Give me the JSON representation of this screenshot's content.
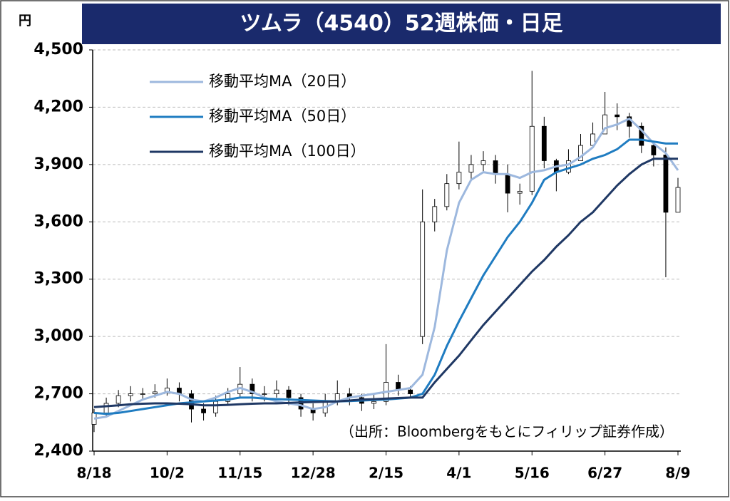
{
  "chart_data": {
    "type": "candlestick",
    "title": "ツムラ（4540）52週株価・日足",
    "y_unit": "円",
    "source_note": "（出所：Bloombergをもとにフィリップ証券作成）",
    "categories": [
      "8/18",
      null,
      null,
      null,
      null,
      null,
      "10/2",
      null,
      null,
      null,
      null,
      null,
      "11/15",
      null,
      null,
      null,
      null,
      null,
      "12/28",
      null,
      null,
      null,
      null,
      null,
      "2/15",
      null,
      null,
      null,
      null,
      null,
      "4/1",
      null,
      null,
      null,
      null,
      null,
      "5/16",
      null,
      null,
      null,
      null,
      null,
      "6/27",
      null,
      null,
      null,
      null,
      null,
      "8/9"
    ],
    "ylim": [
      2400,
      4500
    ],
    "yticks": [
      {
        "value": 2400,
        "label": "2,400"
      },
      {
        "value": 2700,
        "label": "2,700"
      },
      {
        "value": 3000,
        "label": "3,000"
      },
      {
        "value": 3300,
        "label": "3,300"
      },
      {
        "value": 3600,
        "label": "3,600"
      },
      {
        "value": 3900,
        "label": "3,900"
      },
      {
        "value": 4200,
        "label": "4,200"
      },
      {
        "value": 4500,
        "label": "4,500"
      }
    ],
    "grid": true,
    "candle_color": "#000000",
    "open": [
      2540,
      2600,
      2650,
      2690,
      2700,
      2700,
      2710,
      2730,
      2700,
      2620,
      2600,
      2660,
      2700,
      2750,
      2700,
      2700,
      2720,
      2680,
      2620,
      2600,
      2660,
      2700,
      2680,
      2650,
      2660,
      2760,
      2720,
      3000,
      3600,
      3680,
      3800,
      3860,
      3900,
      3920,
      3850,
      3750,
      3760,
      4100,
      3920,
      3860,
      3920,
      4000,
      4060,
      4160,
      4150,
      4100,
      4000,
      3950,
      3650
    ],
    "high": [
      2620,
      2680,
      2720,
      2740,
      2730,
      2750,
      2780,
      2760,
      2720,
      2650,
      2690,
      2730,
      2840,
      2780,
      2740,
      2770,
      2740,
      2700,
      2650,
      2700,
      2770,
      2730,
      2700,
      2700,
      2960,
      2800,
      2740,
      3770,
      3720,
      3850,
      4020,
      3950,
      3970,
      3950,
      3900,
      3800,
      4390,
      4150,
      3930,
      3980,
      4060,
      4120,
      4280,
      4220,
      4170,
      4120,
      4020,
      3990,
      3830
    ],
    "low": [
      2500,
      2580,
      2630,
      2660,
      2670,
      2680,
      2690,
      2660,
      2550,
      2560,
      2580,
      2640,
      2680,
      2660,
      2660,
      2680,
      2640,
      2580,
      2560,
      2580,
      2640,
      2640,
      2610,
      2620,
      2640,
      2690,
      2680,
      2960,
      3550,
      3660,
      3770,
      3820,
      3860,
      3800,
      3650,
      3690,
      3740,
      3880,
      3760,
      3850,
      3940,
      4000,
      4060,
      4080,
      4040,
      3960,
      3890,
      3310,
      3650
    ],
    "close": [
      2600,
      2650,
      2690,
      2700,
      2700,
      2710,
      2730,
      2700,
      2620,
      2600,
      2660,
      2700,
      2750,
      2700,
      2700,
      2720,
      2680,
      2620,
      2600,
      2660,
      2700,
      2680,
      2650,
      2660,
      2760,
      2720,
      2700,
      3600,
      3680,
      3800,
      3860,
      3900,
      3920,
      3850,
      3750,
      3760,
      4100,
      3920,
      3860,
      3920,
      4000,
      4060,
      4160,
      4150,
      4100,
      4000,
      3950,
      3650,
      3780
    ],
    "series": [
      {
        "name": "移動平均MA（20日）",
        "color": "#9db8de",
        "values": [
          2570,
          2580,
          2610,
          2640,
          2670,
          2690,
          2710,
          2700,
          2670,
          2660,
          2680,
          2710,
          2730,
          2710,
          2680,
          2660,
          2650,
          2640,
          2620,
          2630,
          2660,
          2680,
          2690,
          2700,
          2710,
          2720,
          2730,
          2800,
          3050,
          3450,
          3700,
          3820,
          3860,
          3850,
          3850,
          3830,
          3860,
          3870,
          3890,
          3900,
          3940,
          3990,
          4090,
          4110,
          4140,
          4080,
          4010,
          3960,
          3870
        ]
      },
      {
        "name": "移動平均MA（50日）",
        "color": "#1f7cc1",
        "values": [
          2600,
          2595,
          2600,
          2610,
          2620,
          2630,
          2640,
          2650,
          2655,
          2660,
          2665,
          2670,
          2680,
          2680,
          2675,
          2672,
          2670,
          2668,
          2665,
          2662,
          2660,
          2662,
          2665,
          2668,
          2670,
          2675,
          2680,
          2700,
          2800,
          2950,
          3080,
          3200,
          3320,
          3420,
          3520,
          3600,
          3700,
          3820,
          3860,
          3880,
          3900,
          3930,
          3950,
          3980,
          4030,
          4030,
          4020,
          4010,
          4010
        ]
      },
      {
        "name": "移動平均MA（100日）",
        "color": "#1f3864",
        "values": [
          2630,
          2635,
          2640,
          2645,
          2648,
          2650,
          2650,
          2648,
          2645,
          2640,
          2640,
          2642,
          2645,
          2648,
          2650,
          2650,
          2652,
          2655,
          2657,
          2658,
          2660,
          2665,
          2670,
          2672,
          2675,
          2678,
          2680,
          2680,
          2760,
          2830,
          2900,
          2980,
          3060,
          3130,
          3200,
          3270,
          3340,
          3400,
          3470,
          3530,
          3600,
          3650,
          3720,
          3790,
          3850,
          3900,
          3930,
          3930,
          3930
        ]
      }
    ]
  }
}
